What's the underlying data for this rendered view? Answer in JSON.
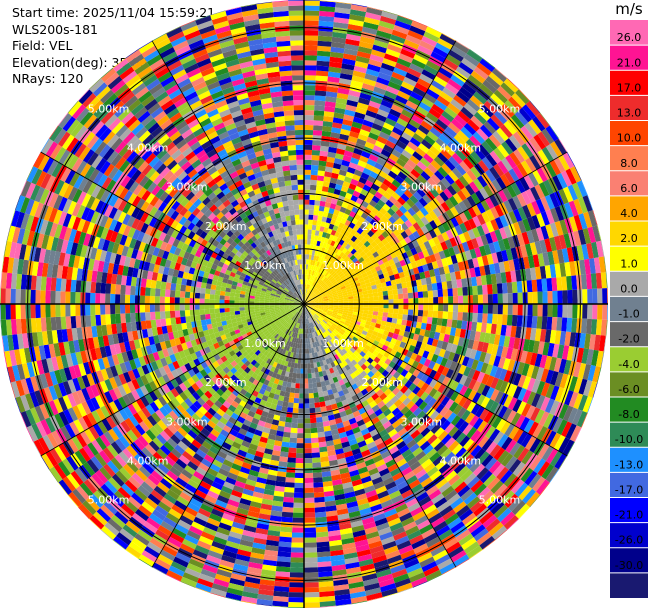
{
  "header": {
    "start_time": "Start time: 2025/11/04 15:59:21",
    "instrument": "WLS200s-181",
    "field": "Field: VEL",
    "elevation": "Elevation(deg): 35.00",
    "nrays": "NRays: 120"
  },
  "chart_data": {
    "type": "heatmap",
    "projection": "polar",
    "title": "",
    "field": "VEL",
    "units": "m/s",
    "n_rays": 120,
    "range_rings_km": [
      1,
      2,
      3,
      4,
      5
    ],
    "range_labels": [
      "1.00km",
      "2.00km",
      "3.00km",
      "4.00km",
      "5.00km"
    ],
    "max_range_km": 5.5,
    "colorbar": {
      "unit_label": "m/s",
      "ticks": [
        "26.0",
        "21.0",
        "17.0",
        "13.0",
        "10.0",
        "8.0",
        "6.0",
        "4.0",
        "2.0",
        "1.0",
        "0.0",
        "-1.0",
        "-2.0",
        "-4.0",
        "-6.0",
        "-8.0",
        "-10.0",
        "-13.0",
        "-17.0",
        "-21.0",
        "-26.0",
        "-30.0"
      ],
      "colors": [
        "#ff69b4",
        "#ff1493",
        "#ff0000",
        "#ee2c2c",
        "#ff4500",
        "#ff7f50",
        "#fa8072",
        "#ffa500",
        "#ffd700",
        "#ffff00",
        "#a9a9a9",
        "#708090",
        "#696969",
        "#9acd32",
        "#6b8e23",
        "#228b22",
        "#2e8b57",
        "#1e90ff",
        "#4169e1",
        "#0000ff",
        "#0000cd",
        "#00008b",
        "#191970"
      ]
    }
  }
}
